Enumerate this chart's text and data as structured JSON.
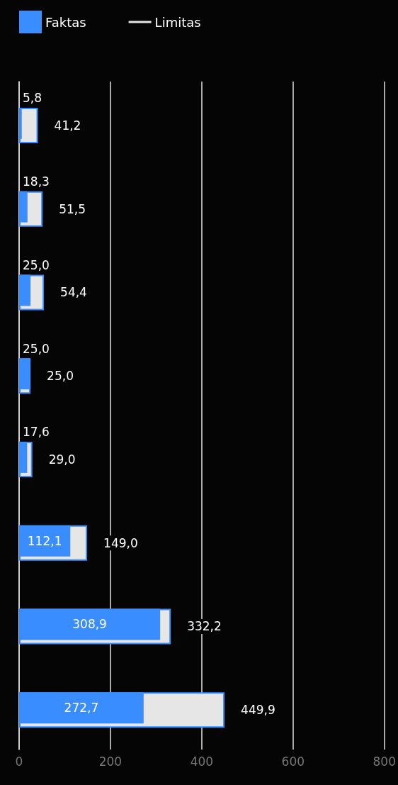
{
  "chart_data": {
    "type": "bar",
    "orientation": "horizontal",
    "categories": [
      null,
      null,
      null,
      null,
      null,
      null,
      null,
      null
    ],
    "series": [
      {
        "name": "Limitas",
        "color": "#e6e6e6",
        "values": [
          41.2,
          51.5,
          54.4,
          25.0,
          29.0,
          149.0,
          332.2,
          449.9
        ],
        "value_labels": [
          "41,2",
          "51,5",
          "54,4",
          "25,0",
          "29,0",
          "149,0",
          "332,2",
          "449,9"
        ]
      },
      {
        "name": "Faktas",
        "color": "#3a8dff",
        "values": [
          5.8,
          18.3,
          25.0,
          25.0,
          17.6,
          112.1,
          308.9,
          272.7
        ],
        "value_labels": [
          "5,8",
          "18,3",
          "25,0",
          "25,0",
          "17,6",
          "112,1",
          "308,9",
          "272,7"
        ]
      }
    ],
    "xlim": [
      0,
      800
    ],
    "xticks": [
      0,
      200,
      400,
      600,
      800
    ],
    "grid": "x",
    "legend": "top left"
  }
}
